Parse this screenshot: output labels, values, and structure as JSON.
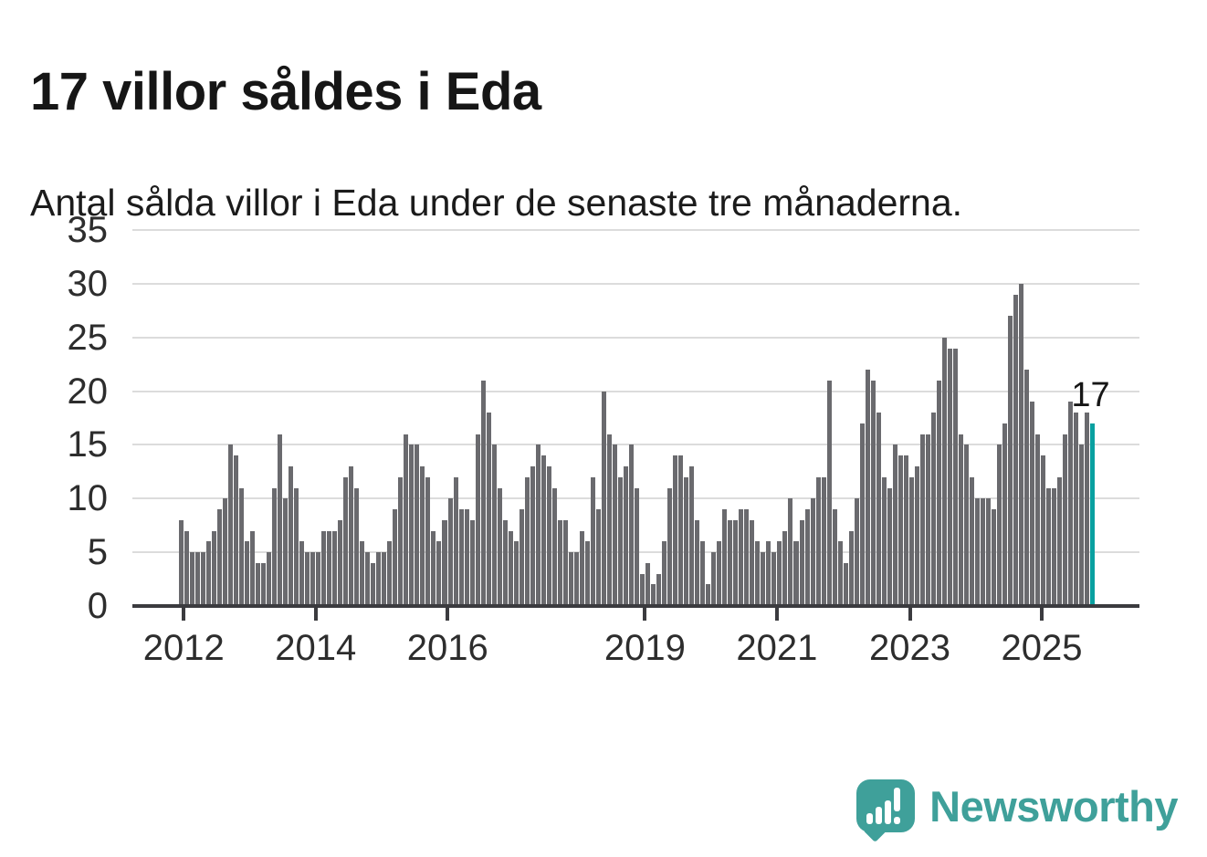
{
  "header": {
    "title": "17 villor såldes i Eda",
    "subtitle": "Antal sålda villor i Eda under de senaste tre månaderna."
  },
  "chart_data": {
    "type": "bar",
    "title": "17 villor såldes i Eda",
    "subtitle": "Antal sålda villor i Eda under de senaste tre månaderna.",
    "xlabel": "",
    "ylabel": "",
    "ylim": [
      0,
      35
    ],
    "yticks": [
      0,
      5,
      10,
      15,
      20,
      25,
      30,
      35
    ],
    "grid": true,
    "legend": false,
    "x_unit": "month",
    "x_start": "2012-01",
    "values": [
      8,
      7,
      5,
      5,
      5,
      6,
      7,
      9,
      10,
      15,
      14,
      11,
      6,
      7,
      4,
      4,
      5,
      11,
      16,
      10,
      13,
      11,
      6,
      5,
      5,
      5,
      7,
      7,
      7,
      8,
      12,
      13,
      11,
      6,
      5,
      4,
      5,
      5,
      6,
      9,
      12,
      16,
      15,
      15,
      13,
      12,
      7,
      6,
      8,
      10,
      12,
      9,
      9,
      8,
      16,
      21,
      18,
      15,
      11,
      8,
      7,
      6,
      9,
      12,
      13,
      15,
      14,
      13,
      11,
      8,
      8,
      5,
      5,
      7,
      6,
      12,
      9,
      20,
      16,
      15,
      12,
      13,
      15,
      11,
      3,
      4,
      2,
      3,
      6,
      11,
      14,
      14,
      12,
      13,
      8,
      6,
      2,
      5,
      6,
      9,
      8,
      8,
      9,
      9,
      8,
      6,
      5,
      6,
      5,
      6,
      7,
      10,
      6,
      8,
      9,
      10,
      12,
      12,
      21,
      9,
      6,
      4,
      7,
      10,
      17,
      22,
      21,
      18,
      12,
      11,
      15,
      14,
      14,
      12,
      13,
      16,
      16,
      18,
      21,
      25,
      24,
      24,
      16,
      15,
      12,
      10,
      10,
      10,
      9,
      15,
      17,
      27,
      29,
      30,
      22,
      19,
      16,
      14,
      11,
      11,
      12,
      16,
      19,
      18,
      15,
      18,
      17
    ],
    "xticks": [
      {
        "label": "2012",
        "pos_pct": 5.1
      },
      {
        "label": "2014",
        "pos_pct": 18.2
      },
      {
        "label": "2016",
        "pos_pct": 31.3
      },
      {
        "label": "2019",
        "pos_pct": 50.9
      },
      {
        "label": "2021",
        "pos_pct": 64.0
      },
      {
        "label": "2023",
        "pos_pct": 77.2
      },
      {
        "label": "2025",
        "pos_pct": 90.3
      }
    ],
    "bar_color": "#6a6a6e",
    "highlight": {
      "position": "last",
      "value": 17,
      "color": "#09a0a0"
    },
    "annotation": "17"
  },
  "footer": {
    "logo_text": "Newsworthy",
    "logo_color": "#3fa09a"
  }
}
